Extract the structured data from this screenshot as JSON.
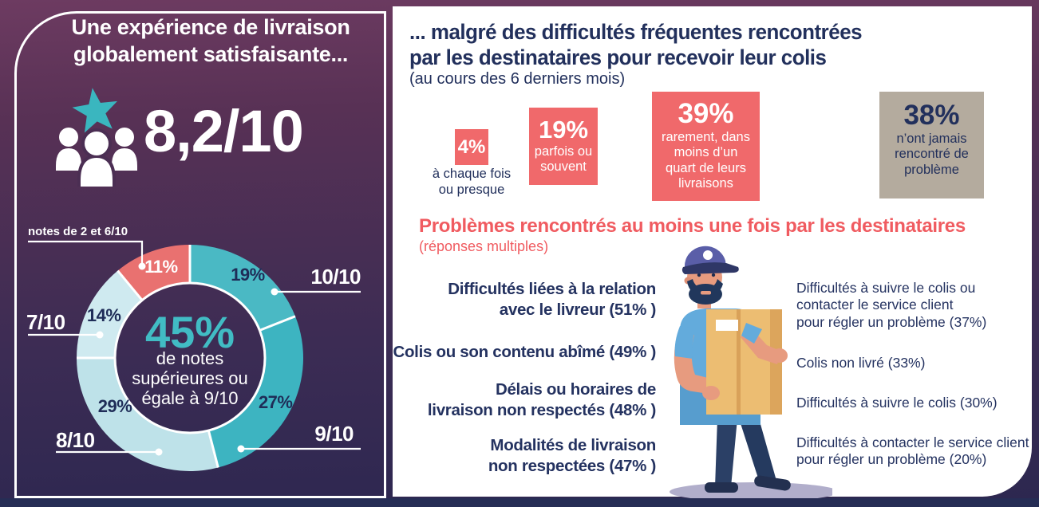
{
  "left_panel": {
    "title": "Une expérience de livraison\nglobalement satisfaisante...",
    "score_value": "8,2/10",
    "icon": "people-with-star-icon",
    "accent_color": "#3ab6bf"
  },
  "chart_data": {
    "type": "donut",
    "title": "",
    "start_angle_deg": 0,
    "direction": "clockwise",
    "segments": [
      {
        "label": "10/10",
        "value_pct": 19,
        "color": "#4ab9c4",
        "value_label_color": "#1f2d58"
      },
      {
        "label": "9/10",
        "value_pct": 27,
        "color": "#3db4c1",
        "value_label_color": "#1f2d58"
      },
      {
        "label": "8/10",
        "value_pct": 29,
        "color": "#bee2e9",
        "value_label_color": "#1f2d58"
      },
      {
        "label": "7/10",
        "value_pct": 14,
        "color": "#cfeaf0",
        "value_label_color": "#1f2d58"
      },
      {
        "label": "notes de 2 et 6/10",
        "value_pct": 11,
        "color": "#e97170",
        "value_label_color": "#ffffff"
      }
    ],
    "center_value": "45%",
    "center_caption": "de notes\nsupérieures ou\négale à 9/10",
    "separator_color": "#ffffff"
  },
  "right_panel": {
    "title": "... malgré des difficultés fréquentes rencontrées\npar les destinataires pour recevoir leur colis",
    "subtitle": "(au cours des 6 derniers mois)",
    "frequency_blocks": [
      {
        "value": "4%",
        "caption": "à chaque fois\nou presque",
        "caption_position": "below",
        "color": "#f0696b"
      },
      {
        "value": "19%",
        "caption": "parfois ou\nsouvent",
        "caption_position": "inside",
        "color": "#f0696b"
      },
      {
        "value": "39%",
        "caption": "rarement, dans\nmoins d’un\nquart de leurs\nlivraisons",
        "caption_position": "inside",
        "color": "#f0696b"
      },
      {
        "value": "38%",
        "caption": "n’ont jamais\nrencontré de\nproblème",
        "caption_position": "inside",
        "color": "#b4ab9e",
        "text_color": "#22305c"
      }
    ],
    "problems_title": "Problèmes rencontrés au moins une fois par les destinataires",
    "problems_subtitle": "(réponses multiples)",
    "problems_left": [
      "Difficultés liées à la relation\navec le livreur (51% )",
      "Colis ou son contenu abîmé (49% )",
      "Délais ou horaires de\nlivraison non respectés (48% )",
      "Modalités de livraison\nnon respectées (47% )"
    ],
    "problems_right": [
      "Difficultés à suivre le colis ou\ncontacter le service client\npour régler un problème (37%)",
      "Colis non livré (33%)",
      "Difficultés à suivre le colis (30%)",
      "Difficultés à contacter le service client\npour régler un problème (20%)"
    ],
    "illustration": "delivery-man-holding-box"
  }
}
